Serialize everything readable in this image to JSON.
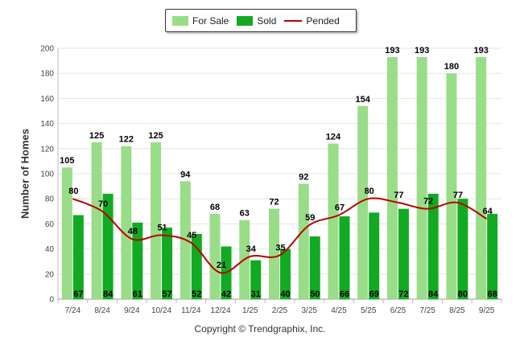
{
  "chart_data": {
    "type": "bar",
    "title": "",
    "xlabel": "",
    "ylabel": "Number of Homes",
    "ylim": [
      0,
      200
    ],
    "yticks": [
      0,
      20,
      40,
      60,
      80,
      100,
      120,
      140,
      160,
      180,
      200
    ],
    "categories": [
      "7/24",
      "8/24",
      "9/24",
      "10/24",
      "11/24",
      "12/24",
      "1/25",
      "2/25",
      "3/25",
      "4/25",
      "5/25",
      "6/25",
      "7/25",
      "8/25",
      "9/25"
    ],
    "series": [
      {
        "name": "For Sale",
        "kind": "bar",
        "color": "#99dd88",
        "values": [
          105,
          125,
          122,
          125,
          94,
          68,
          63,
          72,
          92,
          124,
          154,
          193,
          193,
          180,
          193
        ]
      },
      {
        "name": "Sold",
        "kind": "bar",
        "color": "#11aa22",
        "values": [
          67,
          84,
          61,
          57,
          52,
          42,
          31,
          40,
          50,
          66,
          69,
          72,
          84,
          80,
          68
        ]
      },
      {
        "name": "Pended",
        "kind": "line",
        "color": "#bb0000",
        "values": [
          80,
          70,
          48,
          51,
          45,
          21,
          34,
          35,
          59,
          67,
          80,
          77,
          72,
          77,
          64
        ]
      }
    ],
    "legend_position": "top-center",
    "grid": true
  },
  "footer": {
    "copyright": "Copyright © Trendgraphix, Inc."
  }
}
